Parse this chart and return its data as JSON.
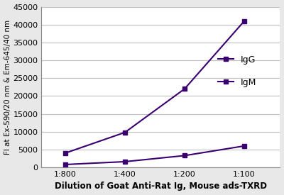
{
  "x_labels": [
    "1:800",
    "1:400",
    "1:200",
    "1:100"
  ],
  "x_values": [
    1,
    2,
    3,
    4
  ],
  "IgG_values": [
    4000,
    9800,
    22000,
    41000
  ],
  "IgM_values": [
    800,
    1600,
    3300,
    6000
  ],
  "line_color_IgG": "#3a006f",
  "line_color_IgM": "#3a006f",
  "title": "",
  "ylabel": "FI at Ex-590/20 nm & Em-645/40 nm",
  "xlabel": "Dilution of Goat Anti-Rat Ig, Mouse ads-TXRD",
  "ylim": [
    0,
    45000
  ],
  "yticks": [
    0,
    5000,
    10000,
    15000,
    20000,
    25000,
    30000,
    35000,
    40000,
    45000
  ],
  "legend_labels": [
    "IgG",
    "IgM"
  ],
  "ylabel_fontsize": 7.5,
  "xlabel_fontsize": 8.5,
  "tick_fontsize": 8,
  "legend_fontsize": 9,
  "bg_color": "#e8e8e8",
  "plot_bg_color": "#ffffff"
}
